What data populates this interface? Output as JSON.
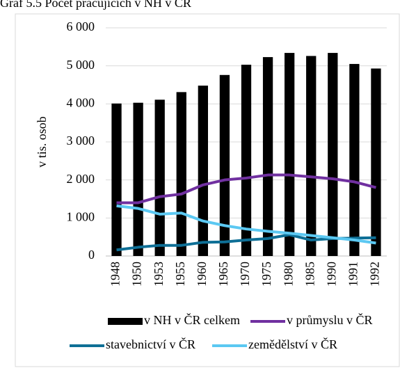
{
  "chart_data": {
    "type": "bar",
    "title": "Graf 5.5 Počet pracujících v NH v ČR",
    "y_label": "v tis. osob",
    "categories": [
      "1948",
      "1950",
      "1953",
      "1955",
      "1960",
      "1965",
      "1970",
      "1975",
      "1980",
      "1985",
      "1990",
      "1991",
      "1992"
    ],
    "series": [
      {
        "name": "v NH v ČR celkem",
        "type": "bar",
        "color": "#000000",
        "values": [
          4010,
          4030,
          4110,
          4310,
          4480,
          4760,
          5030,
          5230,
          5340,
          5260,
          5340,
          5050,
          4930
        ]
      },
      {
        "name": "v průmyslu v ČR",
        "type": "line",
        "color": "#7030a0",
        "values": [
          1400,
          1400,
          1560,
          1630,
          1870,
          2000,
          2050,
          2130,
          2130,
          2080,
          2030,
          1950,
          1800
        ]
      },
      {
        "name": "stavebnictví v ČR",
        "type": "line",
        "color": "#0e6f96",
        "values": [
          160,
          230,
          280,
          280,
          360,
          370,
          420,
          460,
          560,
          420,
          460,
          470,
          480
        ]
      },
      {
        "name": "zemědělství v ČR",
        "type": "line",
        "color": "#5bc8f2",
        "values": [
          1320,
          1250,
          1100,
          1130,
          920,
          800,
          710,
          650,
          600,
          540,
          480,
          420,
          340
        ]
      }
    ],
    "ylim": [
      0,
      6000
    ],
    "yticks": [
      0,
      {
        "value": 1000,
        "label": "1 000"
      },
      {
        "value": 2000,
        "label": "2 000"
      },
      {
        "value": 3000,
        "label": "3 000"
      },
      {
        "value": 4000,
        "label": "4 000"
      },
      {
        "value": 5000,
        "label": "5 000"
      },
      {
        "value": 6000,
        "label": "6 000"
      }
    ],
    "grid": true,
    "legend": "bottom"
  }
}
